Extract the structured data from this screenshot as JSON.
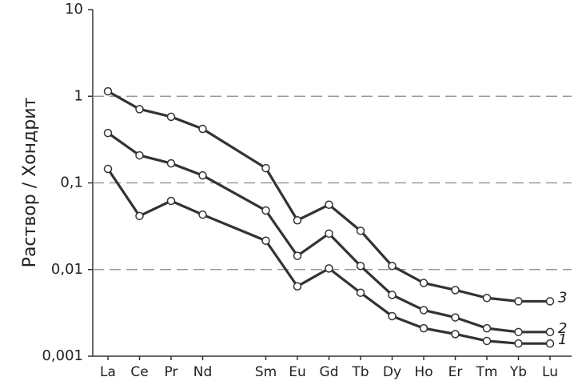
{
  "chart_data": {
    "type": "line",
    "y_label": "Раствор / Хондрит",
    "log_scale": true,
    "grid": true,
    "ylim": [
      0.001,
      10
    ],
    "yticks": [
      {
        "value": 0.001,
        "label": "0,001"
      },
      {
        "value": 0.01,
        "label": "0,01"
      },
      {
        "value": 0.1,
        "label": "0,1"
      },
      1,
      10
    ],
    "categories": [
      "La",
      "Ce",
      "Pr",
      "Nd",
      "Sm",
      "Eu",
      "Gd",
      "Tb",
      "Dy",
      "Ho",
      "Er",
      "Tm",
      "Yb",
      "Lu"
    ],
    "series": [
      {
        "name": "1",
        "color": "#333333",
        "values": [
          0.145,
          0.0415,
          0.062,
          0.043,
          0.0215,
          0.0064,
          0.0103,
          0.0054,
          0.0029,
          0.0021,
          0.0018,
          0.0015,
          0.0014,
          0.0014
        ]
      },
      {
        "name": "2",
        "color": "#333333",
        "values": [
          0.377,
          0.208,
          0.168,
          0.122,
          0.048,
          0.0144,
          0.026,
          0.011,
          0.0051,
          0.0034,
          0.0028,
          0.0021,
          0.0019,
          0.0019
        ]
      },
      {
        "name": "3",
        "color": "#333333",
        "values": [
          1.14,
          0.71,
          0.58,
          0.42,
          0.148,
          0.037,
          0.056,
          0.028,
          0.011,
          0.007,
          0.0058,
          0.0047,
          0.0043,
          0.0043
        ]
      }
    ]
  }
}
